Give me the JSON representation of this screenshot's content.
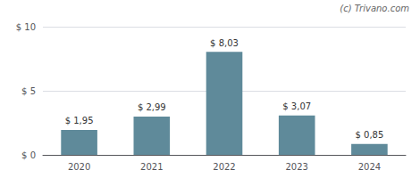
{
  "chart_data": {
    "type": "bar",
    "categories": [
      "2020",
      "2021",
      "2022",
      "2023",
      "2024"
    ],
    "values": [
      1.95,
      2.99,
      8.03,
      3.07,
      0.85
    ],
    "value_labels": [
      "$ 1,95",
      "$ 2,99",
      "$ 8,03",
      "$ 3,07",
      "$ 0,85"
    ],
    "data_labels": true,
    "color": "#5f8a9a",
    "ylim": [
      0,
      10
    ],
    "yticks": [
      {
        "value": 0,
        "label": "$ 0"
      },
      {
        "value": 5,
        "label": "$ 5"
      },
      {
        "value": 10,
        "label": "$ 10"
      }
    ],
    "grid": true,
    "annotations": [
      "(c) Trivano.com"
    ]
  }
}
